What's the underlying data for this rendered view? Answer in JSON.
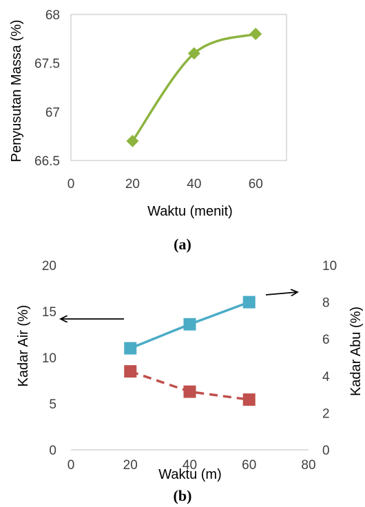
{
  "chart_data": [
    {
      "type": "line",
      "caption": "(a)",
      "xlabel": "Waktu (menit)",
      "ylabel": "Penyusutan Massa (%)",
      "xlim": [
        0,
        70
      ],
      "ylim": [
        66.5,
        68
      ],
      "x_ticks": [
        "0",
        "20",
        "40",
        "60"
      ],
      "y_ticks": [
        "66.5",
        "67",
        "67.5",
        "68"
      ],
      "grid": false,
      "legend": "none",
      "series": [
        {
          "x": [
            20,
            40,
            60
          ],
          "values": [
            66.7,
            67.6,
            67.8
          ],
          "color": "#8cb43f",
          "marker": "diamond",
          "line": "smooth-solid"
        }
      ]
    },
    {
      "type": "line",
      "caption": "(b)",
      "xlabel": "Waktu (m)",
      "ylabel": "Kadar Air (%)",
      "y2label": "Kadar Abu (%)",
      "xlim": [
        0,
        80
      ],
      "ylim": [
        0,
        20
      ],
      "y2lim": [
        0,
        10
      ],
      "x_ticks": [
        "0",
        "20",
        "40",
        "60",
        "80"
      ],
      "y_ticks": [
        "0",
        "5",
        "10",
        "15",
        "20"
      ],
      "y2_ticks": [
        "0",
        "2",
        "4",
        "6",
        "8",
        "10"
      ],
      "grid": false,
      "legend": "none",
      "series": [
        {
          "axis": "left",
          "x": [
            20,
            40,
            60
          ],
          "values": [
            11.0,
            13.6,
            16.0
          ],
          "color": "#4bacc6",
          "marker": "square",
          "line": "solid"
        },
        {
          "axis": "right",
          "x": [
            20,
            40,
            60
          ],
          "values": [
            4.25,
            3.15,
            2.72
          ],
          "color": "#c0504d",
          "marker": "square",
          "line": "dashed"
        }
      ],
      "annotations": [
        "arrow-left-to-left-axis",
        "arrow-right-to-right-axis"
      ]
    }
  ]
}
